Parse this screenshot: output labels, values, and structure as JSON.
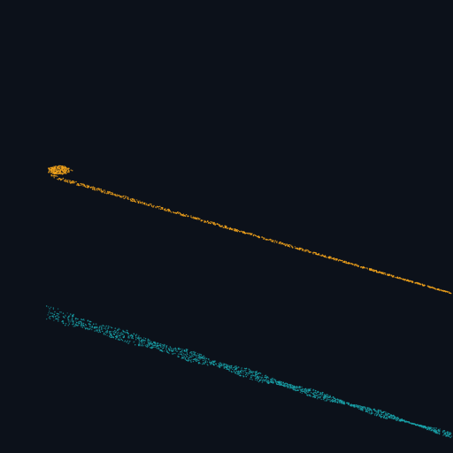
{
  "scene": {
    "background_color": "#0c111a",
    "streaks": [
      {
        "name": "orange-streak",
        "color": "#f0a21c"
      },
      {
        "name": "teal-streak",
        "color": "#1aa6ad"
      }
    ]
  }
}
